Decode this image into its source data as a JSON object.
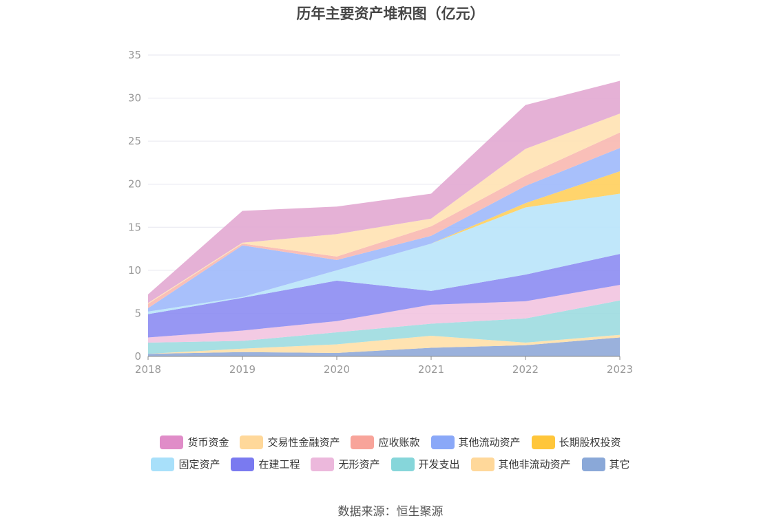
{
  "chart_data": {
    "type": "area",
    "title": "历年主要资产堆积图（亿元）",
    "x": [
      "2018",
      "2019",
      "2020",
      "2021",
      "2022",
      "2023"
    ],
    "yticks": [
      "0",
      "5",
      "10",
      "15",
      "20",
      "25",
      "30",
      "35"
    ],
    "ylim": [
      0,
      35
    ],
    "stacked": true,
    "grid": true,
    "legend_position": "bottom",
    "series": [
      {
        "name": "其它",
        "color": "#8fa8d8",
        "values": [
          0.3,
          0.5,
          0.4,
          1.0,
          1.3,
          2.2
        ]
      },
      {
        "name": "其他非流动资产",
        "color": "#ffe0a8",
        "values": [
          0.0,
          0.4,
          1.0,
          1.4,
          0.3,
          0.3
        ]
      },
      {
        "name": "开发支出",
        "color": "#9ddce0",
        "values": [
          1.3,
          0.9,
          1.4,
          1.4,
          2.8,
          4.0
        ]
      },
      {
        "name": "无形资产",
        "color": "#f2c4e0",
        "values": [
          0.6,
          1.2,
          1.3,
          2.2,
          2.0,
          1.8
        ]
      },
      {
        "name": "在建工程",
        "color": "#8c8cf2",
        "values": [
          2.7,
          3.8,
          4.7,
          1.6,
          3.1,
          3.6
        ]
      },
      {
        "name": "固定资产",
        "color": "#b9e4fa",
        "values": [
          0.3,
          0.1,
          1.2,
          5.5,
          7.8,
          7.0
        ]
      },
      {
        "name": "长期股权投资",
        "color": "#ffcf5c",
        "values": [
          0.0,
          0.0,
          0.0,
          0.0,
          0.5,
          2.6
        ]
      },
      {
        "name": "其他流动资产",
        "color": "#9fb9fb",
        "values": [
          0.4,
          6.0,
          1.2,
          0.9,
          2.0,
          2.7
        ]
      },
      {
        "name": "应收账款",
        "color": "#f8b8b0",
        "values": [
          0.5,
          0.2,
          0.4,
          1.1,
          1.2,
          1.8
        ]
      },
      {
        "name": "交易性金融资产",
        "color": "#ffe2b2",
        "values": [
          0.1,
          0.1,
          2.6,
          0.9,
          3.1,
          2.2
        ]
      },
      {
        "name": "货币资金",
        "color": "#e2a8d2",
        "values": [
          1.0,
          3.7,
          3.2,
          2.9,
          5.1,
          3.8
        ]
      }
    ]
  },
  "legend_rows": [
    [
      {
        "label": "货币资金",
        "color": "#e08cc8"
      },
      {
        "label": "交易性金融资产",
        "color": "#ffd89a"
      },
      {
        "label": "应收账款",
        "color": "#f8a49a"
      },
      {
        "label": "其他流动资产",
        "color": "#8aa8f8"
      },
      {
        "label": "长期股权投资",
        "color": "#ffc63a"
      }
    ],
    [
      {
        "label": "固定资产",
        "color": "#a8e0fa"
      },
      {
        "label": "在建工程",
        "color": "#7a7af0"
      },
      {
        "label": "无形资产",
        "color": "#ecb8dc"
      },
      {
        "label": "开发支出",
        "color": "#86d6da"
      },
      {
        "label": "其他非流动资产",
        "color": "#ffd89a"
      },
      {
        "label": "其它",
        "color": "#8aa8d8"
      }
    ]
  ],
  "source": "数据来源：恒生聚源"
}
